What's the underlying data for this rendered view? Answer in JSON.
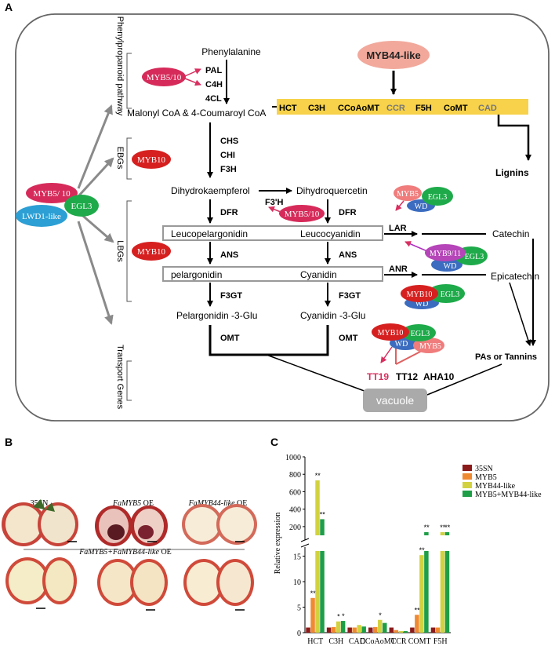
{
  "panel_labels": {
    "a": "A",
    "b": "B",
    "c": "C"
  },
  "side_labels": {
    "phenylpropanoid": "Phenylpropanoid pathway",
    "ebgs": "EBGs",
    "lbgs": "LBGs",
    "transport": "Transport Genes"
  },
  "complex_left": {
    "myb": "MYB5/ 10",
    "egl3": "EGL3",
    "lwd1": "LWD1-like"
  },
  "pathway": {
    "phenylalanine": "Phenylalanine",
    "pal": "PAL",
    "c4h": "C4H",
    "fourcl": "4CL",
    "myb510_top": "MYB5/10",
    "malonyl": "Malonyl CoA & 4-Coumaroyl CoA",
    "myb44": "MYB44-like",
    "lignin_genes": [
      "HCT",
      "C3H",
      "CCoAoMT",
      "CCR",
      "F5H",
      "CoMT",
      "CAD"
    ],
    "lignins": "Lignins",
    "chs": "CHS",
    "chi": "CHI",
    "f3h": "F3H",
    "myb10_ebg": "MYB10",
    "dihydrokaempferol": "Dihydrokaempferol",
    "dihydroquercetin": "Dihydroquercetin",
    "f3ph": "F3'H",
    "myb510_mid": "MYB5/10",
    "dfr1": "DFR",
    "dfr2": "DFR",
    "leucopelargonidin": "Leucopelargonidin",
    "leucocyanidin": "Leucocyanidin",
    "lar": "LAR",
    "catechin": "Catechin",
    "myb10_lbg": "MYB10",
    "ans1": "ANS",
    "ans2": "ANS",
    "pelargonidin": "pelargonidin",
    "cyanidin": "Cyanidin",
    "anr": "ANR",
    "epicatechin": "Epicatechin",
    "f3gt1": "F3GT",
    "f3gt2": "F3GT",
    "pel3glu": "Pelargonidin -3-Glu",
    "cya3glu": "Cyanidin -3-Glu",
    "omt1": "OMT",
    "omt2": "OMT",
    "pas": "PAs or Tannins",
    "tt19": "TT19",
    "tt12": "TT12",
    "aha10": "AHA10",
    "vacuole": "vacuole",
    "c1": {
      "myb": "MYB5",
      "egl3": "EGL3",
      "wd": "WD"
    },
    "c2": {
      "myb": "MYB9/11",
      "egl3": "EGL3",
      "wd": "WD"
    },
    "c3": {
      "myb": "MYB10",
      "egl3": "EGL3",
      "wd": "WD"
    },
    "c4": {
      "myb": "MYB10",
      "egl3": "EGL3",
      "wd": "WD",
      "myb5": "MYB5"
    }
  },
  "photos": {
    "p1": "35SN",
    "p2_italic": "FaMYB5",
    "p2_suffix": " OE",
    "p3_italic": "FaMYB44-like",
    "p3_suffix": " OE",
    "row2_italic": "FaMYB5+FaMYB44-like",
    "row2_suffix": " OE"
  },
  "chart_data": {
    "type": "bar",
    "ylabel": "Relative expression",
    "categories": [
      "HCT",
      "C3H",
      "CAD",
      "CCoAoMT",
      "CCR",
      "COMT",
      "F5H"
    ],
    "series": [
      {
        "name": "35SN",
        "color": "#8b1a1a",
        "values": [
          1,
          1,
          1,
          1,
          1,
          1,
          1
        ]
      },
      {
        "name": "MYB5",
        "color": "#f08a30",
        "values": [
          6.8,
          1.1,
          1.0,
          1.1,
          0.5,
          3.5,
          1.0
        ]
      },
      {
        "name": "MYB44-like",
        "color": "#d2d240",
        "values": [
          730,
          2.2,
          1.5,
          2.5,
          0.3,
          15.2,
          90
        ]
      },
      {
        "name": "MYB5+MYB44-like",
        "color": "#1e9e46",
        "values": [
          285,
          2.3,
          1.2,
          1.9,
          0.3,
          60,
          70
        ]
      }
    ],
    "significance": [
      [
        null,
        "**",
        "**",
        "**"
      ],
      [
        null,
        null,
        "*",
        "*"
      ],
      [
        null,
        null,
        null,
        null
      ],
      [
        null,
        null,
        "*",
        null
      ],
      [
        null,
        null,
        null,
        null
      ],
      [
        null,
        "**",
        "**",
        "**"
      ],
      [
        null,
        null,
        "**",
        "**"
      ]
    ],
    "yticks_lower": [
      "0",
      "5",
      "10",
      "15"
    ],
    "yticks_upper": [
      "200",
      "400",
      "600",
      "800",
      "1000"
    ],
    "ylim_lower": [
      0,
      16
    ],
    "ylim_upper": [
      100,
      1000
    ]
  }
}
